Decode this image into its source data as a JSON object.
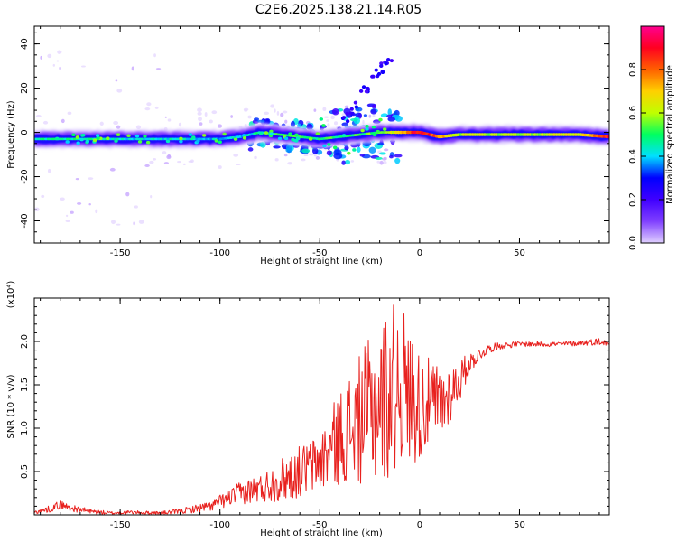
{
  "title": "C2E6.2025.138.21.14.R05",
  "colorbar": {
    "label": "Normalized spectral amplitude",
    "ticks": [
      "0.0",
      "0.2",
      "0.4",
      "0.6",
      "0.8"
    ],
    "tick_values": [
      0.0,
      0.2,
      0.4,
      0.6,
      0.8
    ],
    "range": [
      0,
      1
    ],
    "colors": [
      "#e0d0ff",
      "#8040ff",
      "#4000ff",
      "#0000ff",
      "#00e0ff",
      "#00ff60",
      "#c0ff00",
      "#ffd000",
      "#ff6000",
      "#ff0020",
      "#ff0090"
    ]
  },
  "chart_data": [
    {
      "type": "heatmap",
      "xlabel": "Height of straight line (km)",
      "ylabel": "Frequency (Hz)",
      "xlim": [
        -193,
        95
      ],
      "ylim": [
        -50,
        48
      ],
      "x_ticks": [
        -150,
        -100,
        -50,
        0,
        50
      ],
      "x_tick_labels": [
        "-150",
        "-100",
        "-50",
        "0",
        "50"
      ],
      "y_ticks": [
        -40,
        -20,
        0,
        20,
        40
      ],
      "y_tick_labels": [
        "-40",
        "-20",
        "0",
        "20",
        "40"
      ],
      "grid": false,
      "ridge": {
        "x": [
          -193,
          -170,
          -150,
          -120,
          -100,
          -90,
          -80,
          -70,
          -60,
          -50,
          -40,
          -30,
          -20,
          -15,
          -10,
          -5,
          0,
          5,
          10,
          20,
          40,
          60,
          80,
          95
        ],
        "y": [
          -3,
          -3,
          -3,
          -3,
          -3,
          -2,
          0,
          -1,
          -2,
          -3,
          -2,
          -1,
          0,
          0,
          0,
          0,
          0,
          -1,
          -2,
          -1,
          -1,
          -1,
          -1,
          -2
        ],
        "amplitude": [
          0.45,
          0.45,
          0.42,
          0.42,
          0.4,
          0.4,
          0.45,
          0.5,
          0.5,
          0.5,
          0.5,
          0.5,
          0.55,
          0.6,
          0.65,
          0.85,
          0.9,
          0.85,
          0.75,
          0.6,
          0.6,
          0.6,
          0.65,
          0.9
        ]
      }
    },
    {
      "type": "line",
      "xlabel": "Height of straight line (km)",
      "ylabel": "SNR (10 * v/v)",
      "y_multiplier": "(x10⁴)",
      "xlim": [
        -193,
        95
      ],
      "ylim": [
        0,
        2.5
      ],
      "x_ticks": [
        -150,
        -100,
        -50,
        0,
        50
      ],
      "x_tick_labels": [
        "-150",
        "-100",
        "-50",
        "0",
        "50"
      ],
      "y_ticks": [
        0.5,
        1.0,
        1.5,
        2.0
      ],
      "y_tick_labels": [
        "0.5",
        "1.0",
        "1.5",
        "2.0"
      ],
      "grid": false,
      "series": [
        {
          "color": "#e8211e",
          "x": [
            -193,
            -185,
            -180,
            -175,
            -165,
            -155,
            -145,
            -130,
            -120,
            -110,
            -105,
            -100,
            -95,
            -90,
            -85,
            -80,
            -75,
            -70,
            -65,
            -60,
            -55,
            -50,
            -45,
            -40,
            -35,
            -30,
            -25,
            -20,
            -15,
            -12,
            -10,
            -8,
            -6,
            -4,
            -2,
            0,
            5,
            10,
            15,
            20,
            25,
            30,
            35,
            40,
            50,
            60,
            70,
            80,
            90,
            95
          ],
          "y": [
            0.03,
            0.07,
            0.12,
            0.08,
            0.04,
            0.02,
            0.03,
            0.02,
            0.04,
            0.08,
            0.1,
            0.15,
            0.2,
            0.25,
            0.28,
            0.3,
            0.35,
            0.4,
            0.45,
            0.5,
            0.55,
            0.6,
            0.75,
            0.9,
            1.0,
            1.1,
            1.2,
            1.3,
            1.4,
            1.5,
            1.6,
            1.5,
            1.35,
            1.4,
            1.3,
            1.25,
            1.3,
            1.25,
            1.4,
            1.55,
            1.75,
            1.85,
            1.92,
            1.95,
            1.97,
            1.97,
            1.97,
            1.98,
            2.0,
            1.97
          ],
          "noise": [
            0.02,
            0.04,
            0.05,
            0.04,
            0.03,
            0.02,
            0.02,
            0.02,
            0.03,
            0.05,
            0.06,
            0.08,
            0.1,
            0.13,
            0.15,
            0.17,
            0.2,
            0.25,
            0.28,
            0.3,
            0.32,
            0.35,
            0.45,
            0.55,
            0.65,
            0.75,
            0.85,
            0.95,
            1.0,
            1.0,
            1.0,
            0.9,
            0.8,
            0.75,
            0.7,
            0.65,
            0.5,
            0.5,
            0.35,
            0.25,
            0.12,
            0.07,
            0.05,
            0.04,
            0.03,
            0.03,
            0.03,
            0.03,
            0.04,
            0.03
          ]
        }
      ]
    }
  ]
}
